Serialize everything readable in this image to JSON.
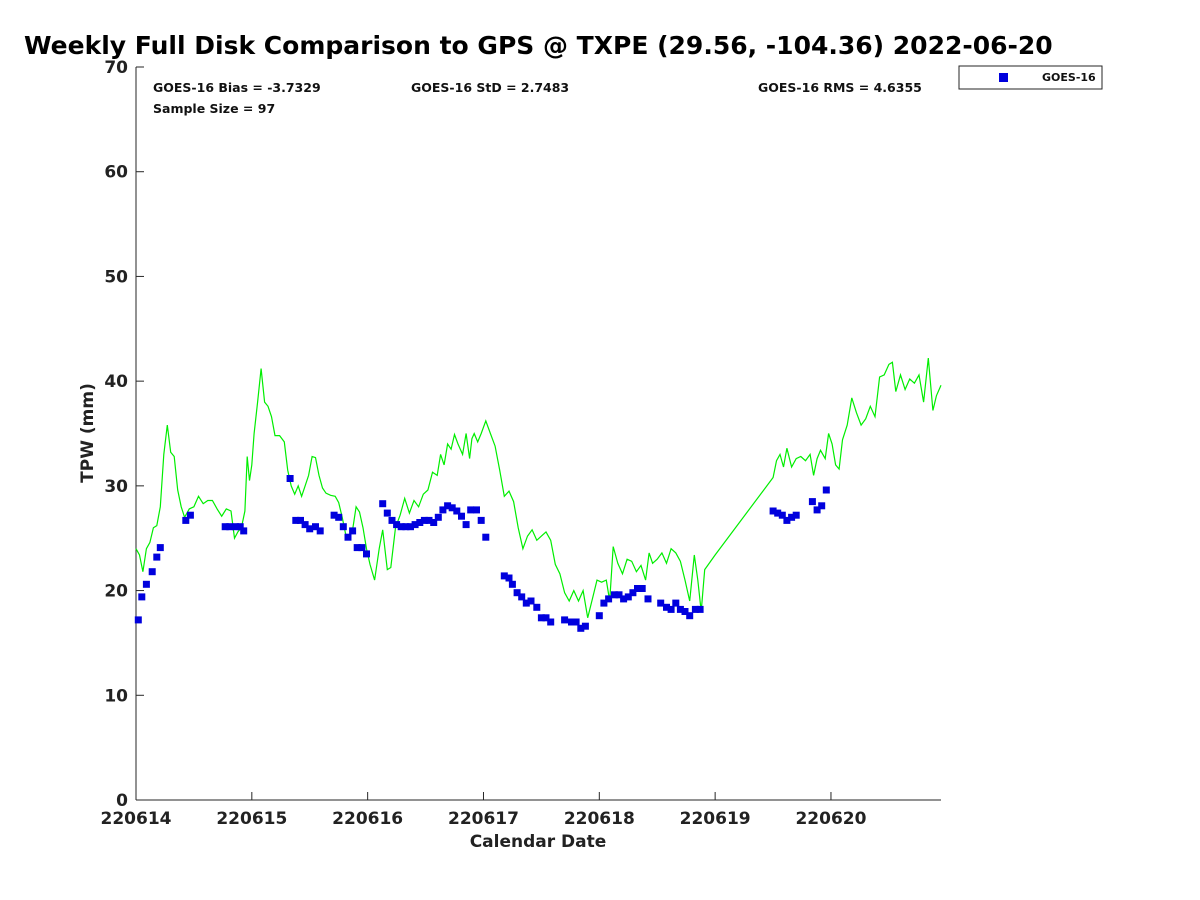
{
  "chart_data": {
    "type": "scatter",
    "title": "Weekly Full Disk Comparison to GPS @ TXPE (29.56, -104.36) 2022-06-20",
    "xlabel": "Calendar Date",
    "ylabel": "TPW (mm)",
    "xlim": [
      0,
      6.95
    ],
    "ylim": [
      0,
      70
    ],
    "x_ticks": [
      {
        "value": 0,
        "label": "220614"
      },
      {
        "value": 1,
        "label": "220615"
      },
      {
        "value": 2,
        "label": "220616"
      },
      {
        "value": 3,
        "label": "220617"
      },
      {
        "value": 4,
        "label": "220618"
      },
      {
        "value": 5,
        "label": "220619"
      },
      {
        "value": 6,
        "label": "220620"
      }
    ],
    "y_ticks": [
      0,
      10,
      20,
      30,
      40,
      50,
      60,
      70
    ],
    "grid": false,
    "legend_position": "outside-top-right",
    "stats": [
      {
        "text": "GOES-16 Bias = -3.7329"
      },
      {
        "text": "GOES-16 StD = 2.7483"
      },
      {
        "text": "GOES-16 RMS = 4.6355"
      },
      {
        "text": "Sample Size = 97"
      }
    ],
    "series": [
      {
        "name": "GOES-16",
        "kind": "markers",
        "color": "#0000dd",
        "points": [
          [
            0.02,
            17.2
          ],
          [
            0.05,
            19.4
          ],
          [
            0.09,
            20.6
          ],
          [
            0.14,
            21.8
          ],
          [
            0.18,
            23.2
          ],
          [
            0.21,
            24.1
          ],
          [
            0.43,
            26.7
          ],
          [
            0.47,
            27.2
          ],
          [
            0.77,
            26.1
          ],
          [
            0.81,
            26.1
          ],
          [
            0.86,
            26.1
          ],
          [
            0.9,
            26.1
          ],
          [
            0.93,
            25.7
          ],
          [
            1.33,
            30.7
          ],
          [
            1.38,
            26.7
          ],
          [
            1.42,
            26.7
          ],
          [
            1.46,
            26.3
          ],
          [
            1.5,
            25.9
          ],
          [
            1.55,
            26.1
          ],
          [
            1.59,
            25.7
          ],
          [
            1.71,
            27.2
          ],
          [
            1.75,
            27.0
          ],
          [
            1.79,
            26.1
          ],
          [
            1.83,
            25.1
          ],
          [
            1.87,
            25.7
          ],
          [
            1.91,
            24.1
          ],
          [
            1.95,
            24.1
          ],
          [
            1.99,
            23.5
          ],
          [
            2.13,
            28.3
          ],
          [
            2.17,
            27.4
          ],
          [
            2.21,
            26.7
          ],
          [
            2.25,
            26.3
          ],
          [
            2.29,
            26.1
          ],
          [
            2.33,
            26.1
          ],
          [
            2.37,
            26.1
          ],
          [
            2.41,
            26.3
          ],
          [
            2.45,
            26.5
          ],
          [
            2.49,
            26.7
          ],
          [
            2.53,
            26.7
          ],
          [
            2.57,
            26.5
          ],
          [
            2.61,
            27.0
          ],
          [
            2.65,
            27.7
          ],
          [
            2.69,
            28.1
          ],
          [
            2.73,
            27.9
          ],
          [
            2.77,
            27.6
          ],
          [
            2.81,
            27.1
          ],
          [
            2.85,
            26.3
          ],
          [
            2.89,
            27.7
          ],
          [
            2.94,
            27.7
          ],
          [
            2.98,
            26.7
          ],
          [
            3.02,
            25.1
          ],
          [
            3.18,
            21.4
          ],
          [
            3.22,
            21.2
          ],
          [
            3.25,
            20.6
          ],
          [
            3.29,
            19.8
          ],
          [
            3.33,
            19.4
          ],
          [
            3.37,
            18.8
          ],
          [
            3.41,
            19.0
          ],
          [
            3.46,
            18.4
          ],
          [
            3.5,
            17.4
          ],
          [
            3.54,
            17.4
          ],
          [
            3.58,
            17.0
          ],
          [
            3.7,
            17.2
          ],
          [
            3.76,
            17.0
          ],
          [
            3.8,
            17.0
          ],
          [
            3.84,
            16.4
          ],
          [
            3.88,
            16.6
          ],
          [
            4.0,
            17.6
          ],
          [
            4.04,
            18.8
          ],
          [
            4.08,
            19.2
          ],
          [
            4.13,
            19.6
          ],
          [
            4.17,
            19.6
          ],
          [
            4.21,
            19.2
          ],
          [
            4.25,
            19.4
          ],
          [
            4.29,
            19.8
          ],
          [
            4.33,
            20.2
          ],
          [
            4.37,
            20.2
          ],
          [
            4.42,
            19.2
          ],
          [
            4.53,
            18.8
          ],
          [
            4.58,
            18.4
          ],
          [
            4.62,
            18.2
          ],
          [
            4.66,
            18.8
          ],
          [
            4.7,
            18.2
          ],
          [
            4.74,
            18.0
          ],
          [
            4.78,
            17.6
          ],
          [
            4.83,
            18.2
          ],
          [
            4.87,
            18.2
          ],
          [
            5.5,
            27.6
          ],
          [
            5.54,
            27.4
          ],
          [
            5.58,
            27.2
          ],
          [
            5.62,
            26.7
          ],
          [
            5.66,
            27.0
          ],
          [
            5.7,
            27.2
          ],
          [
            5.84,
            28.5
          ],
          [
            5.88,
            27.7
          ],
          [
            5.92,
            28.1
          ],
          [
            5.96,
            29.6
          ]
        ]
      },
      {
        "name": "",
        "kind": "line",
        "color": "#00ee00",
        "points": [
          [
            0.0,
            24.0
          ],
          [
            0.03,
            23.4
          ],
          [
            0.06,
            21.8
          ],
          [
            0.09,
            24.0
          ],
          [
            0.12,
            24.6
          ],
          [
            0.15,
            26.0
          ],
          [
            0.18,
            26.2
          ],
          [
            0.21,
            28.0
          ],
          [
            0.24,
            33.0
          ],
          [
            0.27,
            35.8
          ],
          [
            0.3,
            33.2
          ],
          [
            0.33,
            32.8
          ],
          [
            0.36,
            29.6
          ],
          [
            0.39,
            28.0
          ],
          [
            0.42,
            27.0
          ],
          [
            0.46,
            27.8
          ],
          [
            0.5,
            28.0
          ],
          [
            0.54,
            29.0
          ],
          [
            0.58,
            28.3
          ],
          [
            0.62,
            28.6
          ],
          [
            0.66,
            28.6
          ],
          [
            0.7,
            27.8
          ],
          [
            0.74,
            27.1
          ],
          [
            0.78,
            27.8
          ],
          [
            0.82,
            27.6
          ],
          [
            0.85,
            25.0
          ],
          [
            0.88,
            25.6
          ],
          [
            0.91,
            26.0
          ],
          [
            0.94,
            27.6
          ],
          [
            0.96,
            32.8
          ],
          [
            0.98,
            30.5
          ],
          [
            1.0,
            32.0
          ],
          [
            1.02,
            35.0
          ],
          [
            1.05,
            38.0
          ],
          [
            1.08,
            41.2
          ],
          [
            1.11,
            38.0
          ],
          [
            1.14,
            37.6
          ],
          [
            1.17,
            36.6
          ],
          [
            1.2,
            34.8
          ],
          [
            1.24,
            34.8
          ],
          [
            1.28,
            34.2
          ],
          [
            1.31,
            31.5
          ],
          [
            1.34,
            30.0
          ],
          [
            1.37,
            29.2
          ],
          [
            1.4,
            30.0
          ],
          [
            1.43,
            29.0
          ],
          [
            1.46,
            30.0
          ],
          [
            1.49,
            31.0
          ],
          [
            1.52,
            32.8
          ],
          [
            1.55,
            32.7
          ],
          [
            1.58,
            31.0
          ],
          [
            1.61,
            29.8
          ],
          [
            1.64,
            29.3
          ],
          [
            1.68,
            29.1
          ],
          [
            1.72,
            29.0
          ],
          [
            1.75,
            28.4
          ],
          [
            1.78,
            27.0
          ],
          [
            1.81,
            25.4
          ],
          [
            1.84,
            25.1
          ],
          [
            1.87,
            25.8
          ],
          [
            1.9,
            28.0
          ],
          [
            1.93,
            27.5
          ],
          [
            1.96,
            26.0
          ],
          [
            1.99,
            24.0
          ],
          [
            2.02,
            22.5
          ],
          [
            2.06,
            21.0
          ],
          [
            2.1,
            24.0
          ],
          [
            2.13,
            25.8
          ],
          [
            2.17,
            22.0
          ],
          [
            2.2,
            22.2
          ],
          [
            2.24,
            26.0
          ],
          [
            2.28,
            27.2
          ],
          [
            2.32,
            28.8
          ],
          [
            2.36,
            27.4
          ],
          [
            2.4,
            28.6
          ],
          [
            2.44,
            28.0
          ],
          [
            2.48,
            29.2
          ],
          [
            2.52,
            29.6
          ],
          [
            2.56,
            31.3
          ],
          [
            2.6,
            31.0
          ],
          [
            2.63,
            33.0
          ],
          [
            2.66,
            32.0
          ],
          [
            2.69,
            34.0
          ],
          [
            2.72,
            33.5
          ],
          [
            2.75,
            34.9
          ],
          [
            2.78,
            34.0
          ],
          [
            2.82,
            33.0
          ],
          [
            2.85,
            35.0
          ],
          [
            2.88,
            32.6
          ],
          [
            2.9,
            34.5
          ],
          [
            2.92,
            35.0
          ],
          [
            2.95,
            34.2
          ],
          [
            2.98,
            35.0
          ],
          [
            3.02,
            36.2
          ],
          [
            3.06,
            35.0
          ],
          [
            3.1,
            33.8
          ],
          [
            3.14,
            31.5
          ],
          [
            3.18,
            29.0
          ],
          [
            3.22,
            29.5
          ],
          [
            3.26,
            28.5
          ],
          [
            3.3,
            26.0
          ],
          [
            3.34,
            24.0
          ],
          [
            3.38,
            25.2
          ],
          [
            3.42,
            25.8
          ],
          [
            3.46,
            24.8
          ],
          [
            3.5,
            25.2
          ],
          [
            3.54,
            25.6
          ],
          [
            3.58,
            24.8
          ],
          [
            3.62,
            22.5
          ],
          [
            3.66,
            21.6
          ],
          [
            3.7,
            19.8
          ],
          [
            3.74,
            19.0
          ],
          [
            3.78,
            20.0
          ],
          [
            3.82,
            19.0
          ],
          [
            3.86,
            20.0
          ],
          [
            3.9,
            17.4
          ],
          [
            3.94,
            19.2
          ],
          [
            3.98,
            21.0
          ],
          [
            4.02,
            20.8
          ],
          [
            4.06,
            21.0
          ],
          [
            4.09,
            19.0
          ],
          [
            4.12,
            24.2
          ],
          [
            4.16,
            22.6
          ],
          [
            4.2,
            21.6
          ],
          [
            4.24,
            23.0
          ],
          [
            4.28,
            22.8
          ],
          [
            4.32,
            21.8
          ],
          [
            4.36,
            22.4
          ],
          [
            4.4,
            21.0
          ],
          [
            4.43,
            23.6
          ],
          [
            4.46,
            22.6
          ],
          [
            4.5,
            23.0
          ],
          [
            4.54,
            23.6
          ],
          [
            4.58,
            22.6
          ],
          [
            4.62,
            24.0
          ],
          [
            4.66,
            23.6
          ],
          [
            4.7,
            22.8
          ],
          [
            4.74,
            21.0
          ],
          [
            4.78,
            19.0
          ],
          [
            4.82,
            23.4
          ],
          [
            4.85,
            21.0
          ],
          [
            4.88,
            18.0
          ],
          [
            4.91,
            22.0
          ],
          [
            5.0,
            23.4
          ],
          [
            5.5,
            30.8
          ],
          [
            5.53,
            32.4
          ],
          [
            5.56,
            33.0
          ],
          [
            5.59,
            31.8
          ],
          [
            5.62,
            33.6
          ],
          [
            5.66,
            31.8
          ],
          [
            5.7,
            32.6
          ],
          [
            5.74,
            32.8
          ],
          [
            5.78,
            32.4
          ],
          [
            5.82,
            33.0
          ],
          [
            5.85,
            31.0
          ],
          [
            5.88,
            32.6
          ],
          [
            5.91,
            33.4
          ],
          [
            5.95,
            32.6
          ],
          [
            5.98,
            35.0
          ],
          [
            6.01,
            34.0
          ],
          [
            6.04,
            32.0
          ],
          [
            6.07,
            31.6
          ],
          [
            6.1,
            34.4
          ],
          [
            6.14,
            35.8
          ],
          [
            6.18,
            38.4
          ],
          [
            6.22,
            37.0
          ],
          [
            6.26,
            35.8
          ],
          [
            6.3,
            36.4
          ],
          [
            6.34,
            37.6
          ],
          [
            6.38,
            36.6
          ],
          [
            6.42,
            40.4
          ],
          [
            6.46,
            40.6
          ],
          [
            6.5,
            41.6
          ],
          [
            6.53,
            41.8
          ],
          [
            6.56,
            39.0
          ],
          [
            6.6,
            40.6
          ],
          [
            6.64,
            39.2
          ],
          [
            6.68,
            40.2
          ],
          [
            6.72,
            39.8
          ],
          [
            6.76,
            40.6
          ],
          [
            6.8,
            38.0
          ],
          [
            6.84,
            42.2
          ],
          [
            6.88,
            37.2
          ],
          [
            6.91,
            38.6
          ],
          [
            6.95,
            39.6
          ]
        ]
      }
    ]
  }
}
